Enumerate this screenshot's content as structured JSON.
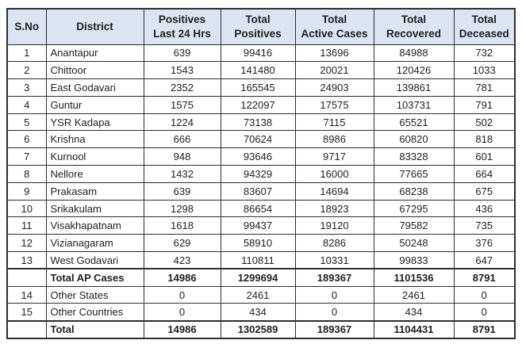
{
  "colors": {
    "header_bg": "#dbe4f0",
    "border": "#2e2e2e",
    "text": "#1f1f1f"
  },
  "table": {
    "headers": [
      {
        "lines": [
          "S.No"
        ]
      },
      {
        "lines": [
          "District"
        ]
      },
      {
        "lines": [
          "Positives",
          "Last 24 Hrs"
        ]
      },
      {
        "lines": [
          "Total",
          "Positives"
        ]
      },
      {
        "lines": [
          "Total",
          "Active Cases"
        ]
      },
      {
        "lines": [
          "Total",
          "Recovered"
        ]
      },
      {
        "lines": [
          "Total",
          "Deceased"
        ]
      }
    ],
    "rows": [
      {
        "sno": "1",
        "district": "Anantapur",
        "values": [
          "639",
          "99416",
          "13696",
          "84988",
          "732"
        ],
        "bold": false
      },
      {
        "sno": "2",
        "district": "Chittoor",
        "values": [
          "1543",
          "141480",
          "20021",
          "120426",
          "1033"
        ],
        "bold": false
      },
      {
        "sno": "3",
        "district": "East Godavari",
        "values": [
          "2352",
          "165545",
          "24903",
          "139861",
          "781"
        ],
        "bold": false
      },
      {
        "sno": "4",
        "district": "Guntur",
        "values": [
          "1575",
          "122097",
          "17575",
          "103731",
          "791"
        ],
        "bold": false
      },
      {
        "sno": "5",
        "district": "YSR Kadapa",
        "values": [
          "1224",
          "73138",
          "7115",
          "65521",
          "502"
        ],
        "bold": false
      },
      {
        "sno": "6",
        "district": "Krishna",
        "values": [
          "666",
          "70624",
          "8986",
          "60820",
          "818"
        ],
        "bold": false
      },
      {
        "sno": "7",
        "district": "Kurnool",
        "values": [
          "948",
          "93646",
          "9717",
          "83328",
          "601"
        ],
        "bold": false
      },
      {
        "sno": "8",
        "district": "Nellore",
        "values": [
          "1432",
          "94329",
          "16000",
          "77665",
          "664"
        ],
        "bold": false
      },
      {
        "sno": "9",
        "district": "Prakasam",
        "values": [
          "639",
          "83607",
          "14694",
          "68238",
          "675"
        ],
        "bold": false
      },
      {
        "sno": "10",
        "district": "Srikakulam",
        "values": [
          "1298",
          "86654",
          "18923",
          "67295",
          "436"
        ],
        "bold": false
      },
      {
        "sno": "11",
        "district": "Visakhapatnam",
        "values": [
          "1618",
          "99437",
          "19120",
          "79582",
          "735"
        ],
        "bold": false
      },
      {
        "sno": "12",
        "district": "Vizianagaram",
        "values": [
          "629",
          "58910",
          "8286",
          "50248",
          "376"
        ],
        "bold": false
      },
      {
        "sno": "13",
        "district": "West Godavari",
        "values": [
          "423",
          "110811",
          "10331",
          "99833",
          "647"
        ],
        "bold": false
      },
      {
        "sno": "",
        "district": "Total AP Cases",
        "values": [
          "14986",
          "1299694",
          "189367",
          "1101536",
          "8791"
        ],
        "bold": true
      },
      {
        "sno": "14",
        "district": "Other States",
        "values": [
          "0",
          "2461",
          "0",
          "2461",
          "0"
        ],
        "bold": false
      },
      {
        "sno": "15",
        "district": "Other Countries",
        "values": [
          "0",
          "434",
          "0",
          "434",
          "0"
        ],
        "bold": false
      },
      {
        "sno": "",
        "district": "Total",
        "values": [
          "14986",
          "1302589",
          "189367",
          "1104431",
          "8791"
        ],
        "bold": true
      }
    ]
  }
}
